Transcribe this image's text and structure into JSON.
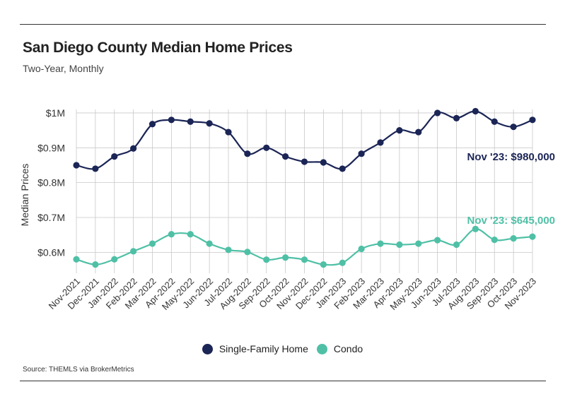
{
  "header": {
    "title": "San Diego County Median Home Prices",
    "subtitle": "Two-Year, Monthly"
  },
  "source": "Source:  THEMLS via BrokerMetrics",
  "colors": {
    "sfh": "#1b2556",
    "condo": "#4fc0a6",
    "grid": "#c8c8c8"
  },
  "chart_data": {
    "type": "line",
    "title": "San Diego County Median Home Prices",
    "subtitle": "Two-Year, Monthly",
    "xlabel": "",
    "ylabel": "Median Prices",
    "ylim": [
      540000,
      1010000
    ],
    "yticks": [
      600000,
      700000,
      800000,
      900000,
      1000000
    ],
    "ytick_labels": [
      "$0.6M",
      "$0.7M",
      "$0.8M",
      "$0.9M",
      "$1M"
    ],
    "categories": [
      "Nov-2021",
      "Dec-2021",
      "Jan-2022",
      "Feb-2022",
      "Mar-2022",
      "Apr-2022",
      "May-2022",
      "Jun-2022",
      "Jul-2022",
      "Aug-2022",
      "Sep-2022",
      "Oct-2022",
      "Nov-2022",
      "Dec-2022",
      "Jan-2023",
      "Feb-2023",
      "Mar-2023",
      "Apr-2023",
      "May-2023",
      "Jun-2023",
      "Jul-2023",
      "Aug-2023",
      "Sep-2023",
      "Oct-2023",
      "Nov-2023"
    ],
    "series": [
      {
        "name": "Single-Family Home",
        "color": "#1b2556",
        "values": [
          850000,
          840000,
          875000,
          898000,
          968000,
          980000,
          975000,
          970000,
          945000,
          883000,
          900000,
          875000,
          860000,
          858000,
          840000,
          883000,
          915000,
          950000,
          945000,
          1000000,
          985000,
          1005000,
          975000,
          960000,
          980000
        ]
      },
      {
        "name": "Condo",
        "color": "#4fc0a6",
        "values": [
          580000,
          565000,
          580000,
          603000,
          625000,
          652000,
          652000,
          625000,
          607000,
          601000,
          579000,
          585000,
          579000,
          565000,
          570000,
          610000,
          625000,
          622000,
          625000,
          635000,
          622000,
          667000,
          636000,
          640000,
          645000
        ]
      }
    ],
    "annotations": [
      {
        "text": "Nov '23: $980,000",
        "series": 0
      },
      {
        "text": "Nov '23: $645,000",
        "series": 1
      }
    ],
    "grid": true,
    "legend_position": "bottom-center"
  }
}
